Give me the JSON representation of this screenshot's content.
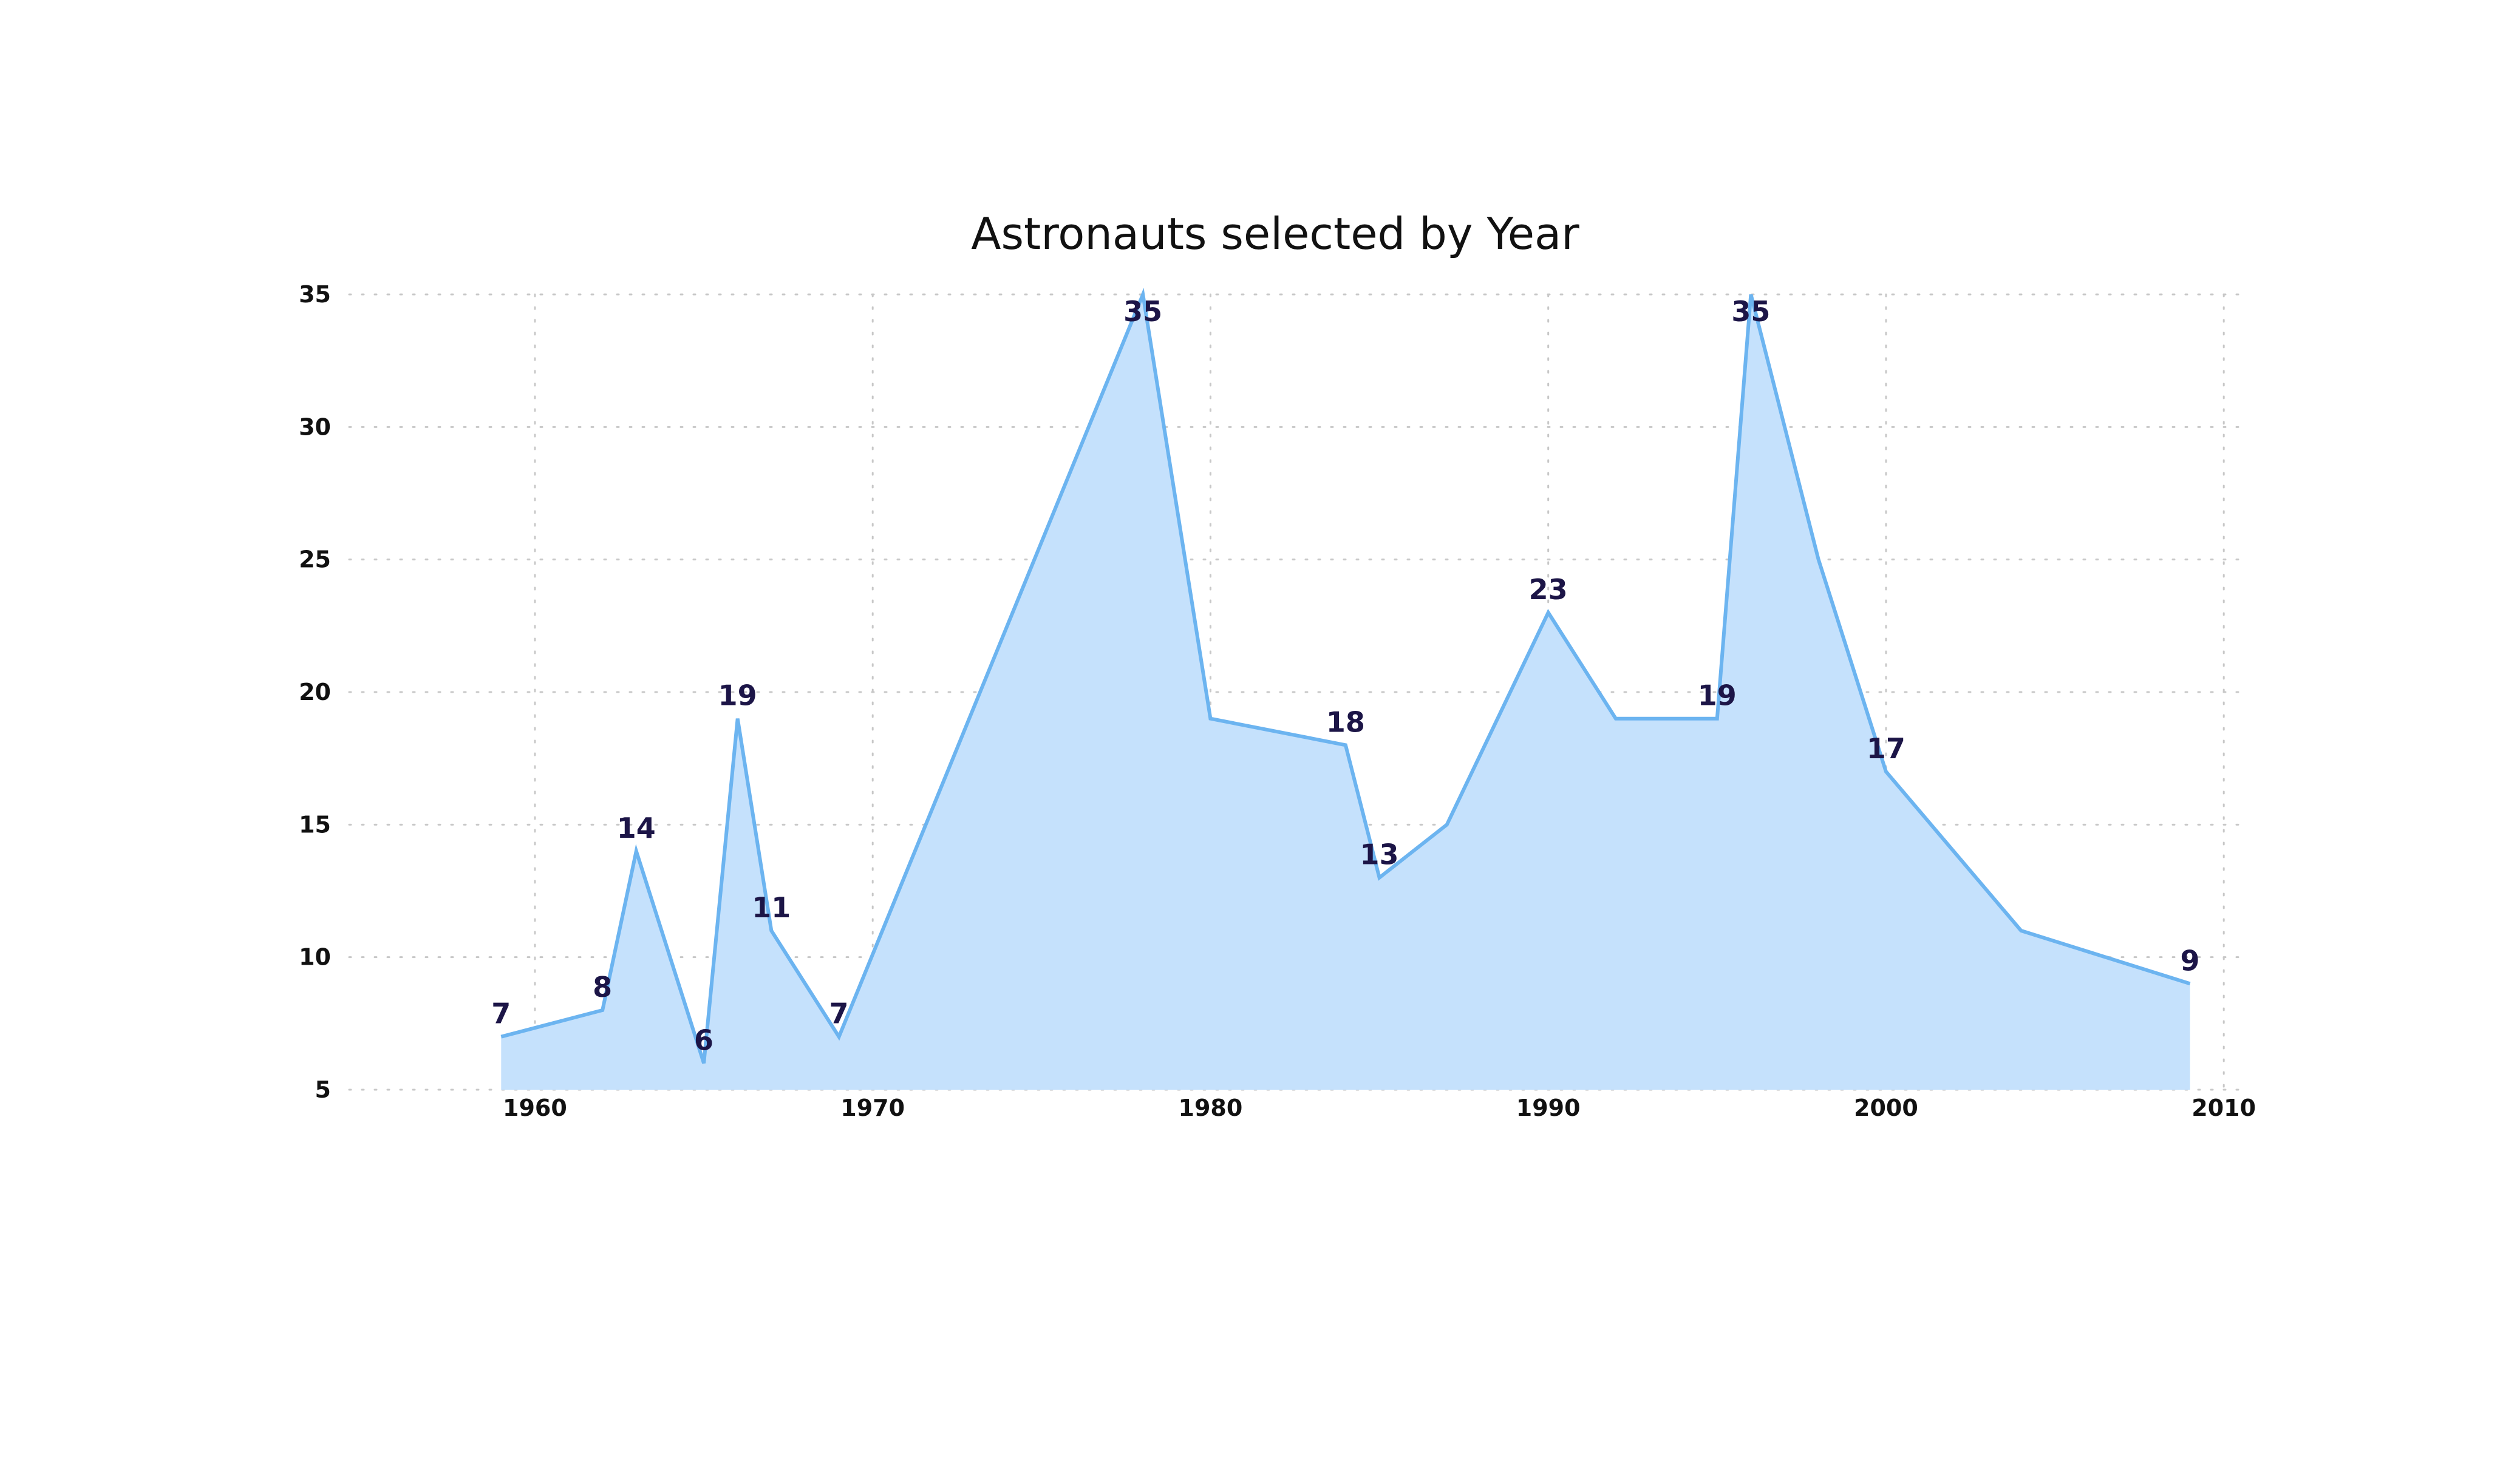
{
  "chart_data": {
    "type": "area",
    "title": "Astronauts selected by Year",
    "xlabel": "",
    "ylabel": "",
    "x": [
      1959,
      1962,
      1963,
      1965,
      1966,
      1967,
      1969,
      1978,
      1980,
      1984,
      1985,
      1987,
      1990,
      1992,
      1995,
      1996,
      1998,
      2000,
      2004,
      2009
    ],
    "y": [
      7,
      8,
      14,
      6,
      19,
      11,
      7,
      35,
      19,
      18,
      13,
      15,
      23,
      19,
      19,
      35,
      25,
      17,
      11,
      9
    ],
    "data_labels": [
      {
        "x": 1959,
        "text": "7"
      },
      {
        "x": 1962,
        "text": "8"
      },
      {
        "x": 1963,
        "text": "14"
      },
      {
        "x": 1965,
        "text": "6"
      },
      {
        "x": 1966,
        "text": "19"
      },
      {
        "x": 1967,
        "text": "11"
      },
      {
        "x": 1969,
        "text": "7"
      },
      {
        "x": 1978,
        "text": "35"
      },
      {
        "x": 1984,
        "text": "18"
      },
      {
        "x": 1985,
        "text": "13"
      },
      {
        "x": 1990,
        "text": "23"
      },
      {
        "x": 1995,
        "text": "19"
      },
      {
        "x": 1996,
        "text": "35"
      },
      {
        "x": 2000,
        "text": "17"
      },
      {
        "x": 2009,
        "text": "9"
      }
    ],
    "xticks": [
      1960,
      1970,
      1980,
      1990,
      2000,
      2010
    ],
    "xtick_labels": [
      "1960",
      "1970",
      "1980",
      "1990",
      "2000",
      "2010"
    ],
    "yticks": [
      5,
      10,
      15,
      20,
      25,
      30,
      35
    ],
    "ytick_labels": [
      "5",
      "10",
      "15",
      "20",
      "25",
      "30",
      "35"
    ],
    "xlim": [
      1954.5,
      2010.5
    ],
    "ylim": [
      5,
      35
    ],
    "grid": true,
    "legend": "none",
    "colors": {
      "fill": "#c5e1fc",
      "line": "#6cb4f0",
      "data_label": "#1c1547",
      "grid": "#c8c8c8"
    }
  }
}
